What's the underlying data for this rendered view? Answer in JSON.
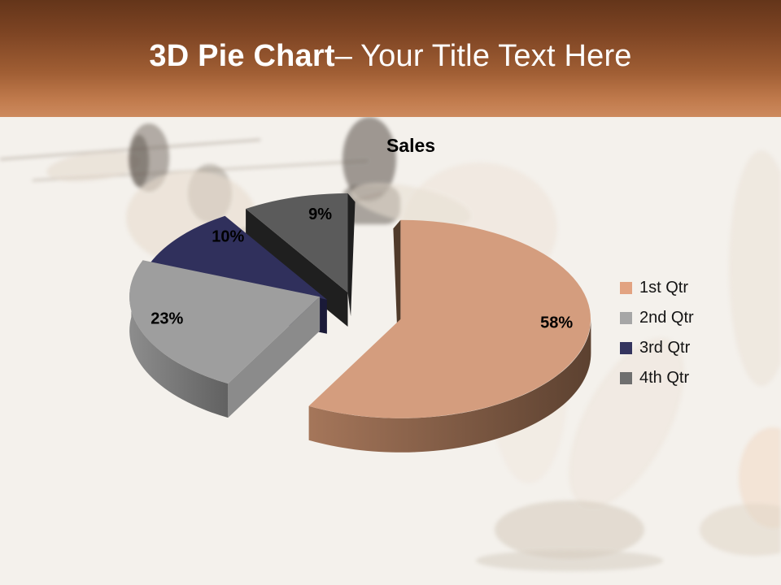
{
  "slide": {
    "header": {
      "title_bold": "3D Pie Chart",
      "title_rest": "– Your Title Text Here"
    },
    "chart": {
      "title": "Sales"
    },
    "legend": [
      {
        "label": "1st Qtr",
        "color": "#e2a381"
      },
      {
        "label": "2nd Qtr",
        "color": "#a6a6a6"
      },
      {
        "label": "3rd Qtr",
        "color": "#34345e"
      },
      {
        "label": "4th Qtr",
        "color": "#6f6f6f"
      }
    ],
    "background_image_alt": "faded photo of fencers dueling"
  },
  "chart_data": {
    "type": "pie",
    "projection": "3d",
    "exploded": true,
    "title": "Sales",
    "categories": [
      "1st Qtr",
      "2nd Qtr",
      "3rd Qtr",
      "4th Qtr"
    ],
    "values": [
      58,
      23,
      10,
      9
    ],
    "value_format": "percent",
    "data_labels": [
      "58%",
      "23%",
      "10%",
      "9%"
    ],
    "legend_position": "right",
    "start_angle_deg": 0,
    "direction": "clockwise",
    "colors": {
      "top": [
        "#d49d7e",
        "#9e9e9e",
        "#30305c",
        "#5b5b5b"
      ],
      "side_light": [
        "#a5765a",
        "#8d8d8d",
        "#23234a",
        "#3c3c3c"
      ],
      "side_dark": [
        "#5c4130",
        "#616161",
        "#141430",
        "#1b1b1b"
      ],
      "radial": [
        "#4f3a2a",
        "#8b8b8b",
        "#1a1a38",
        "#1f1f1f"
      ]
    },
    "label_color": "#000000"
  }
}
